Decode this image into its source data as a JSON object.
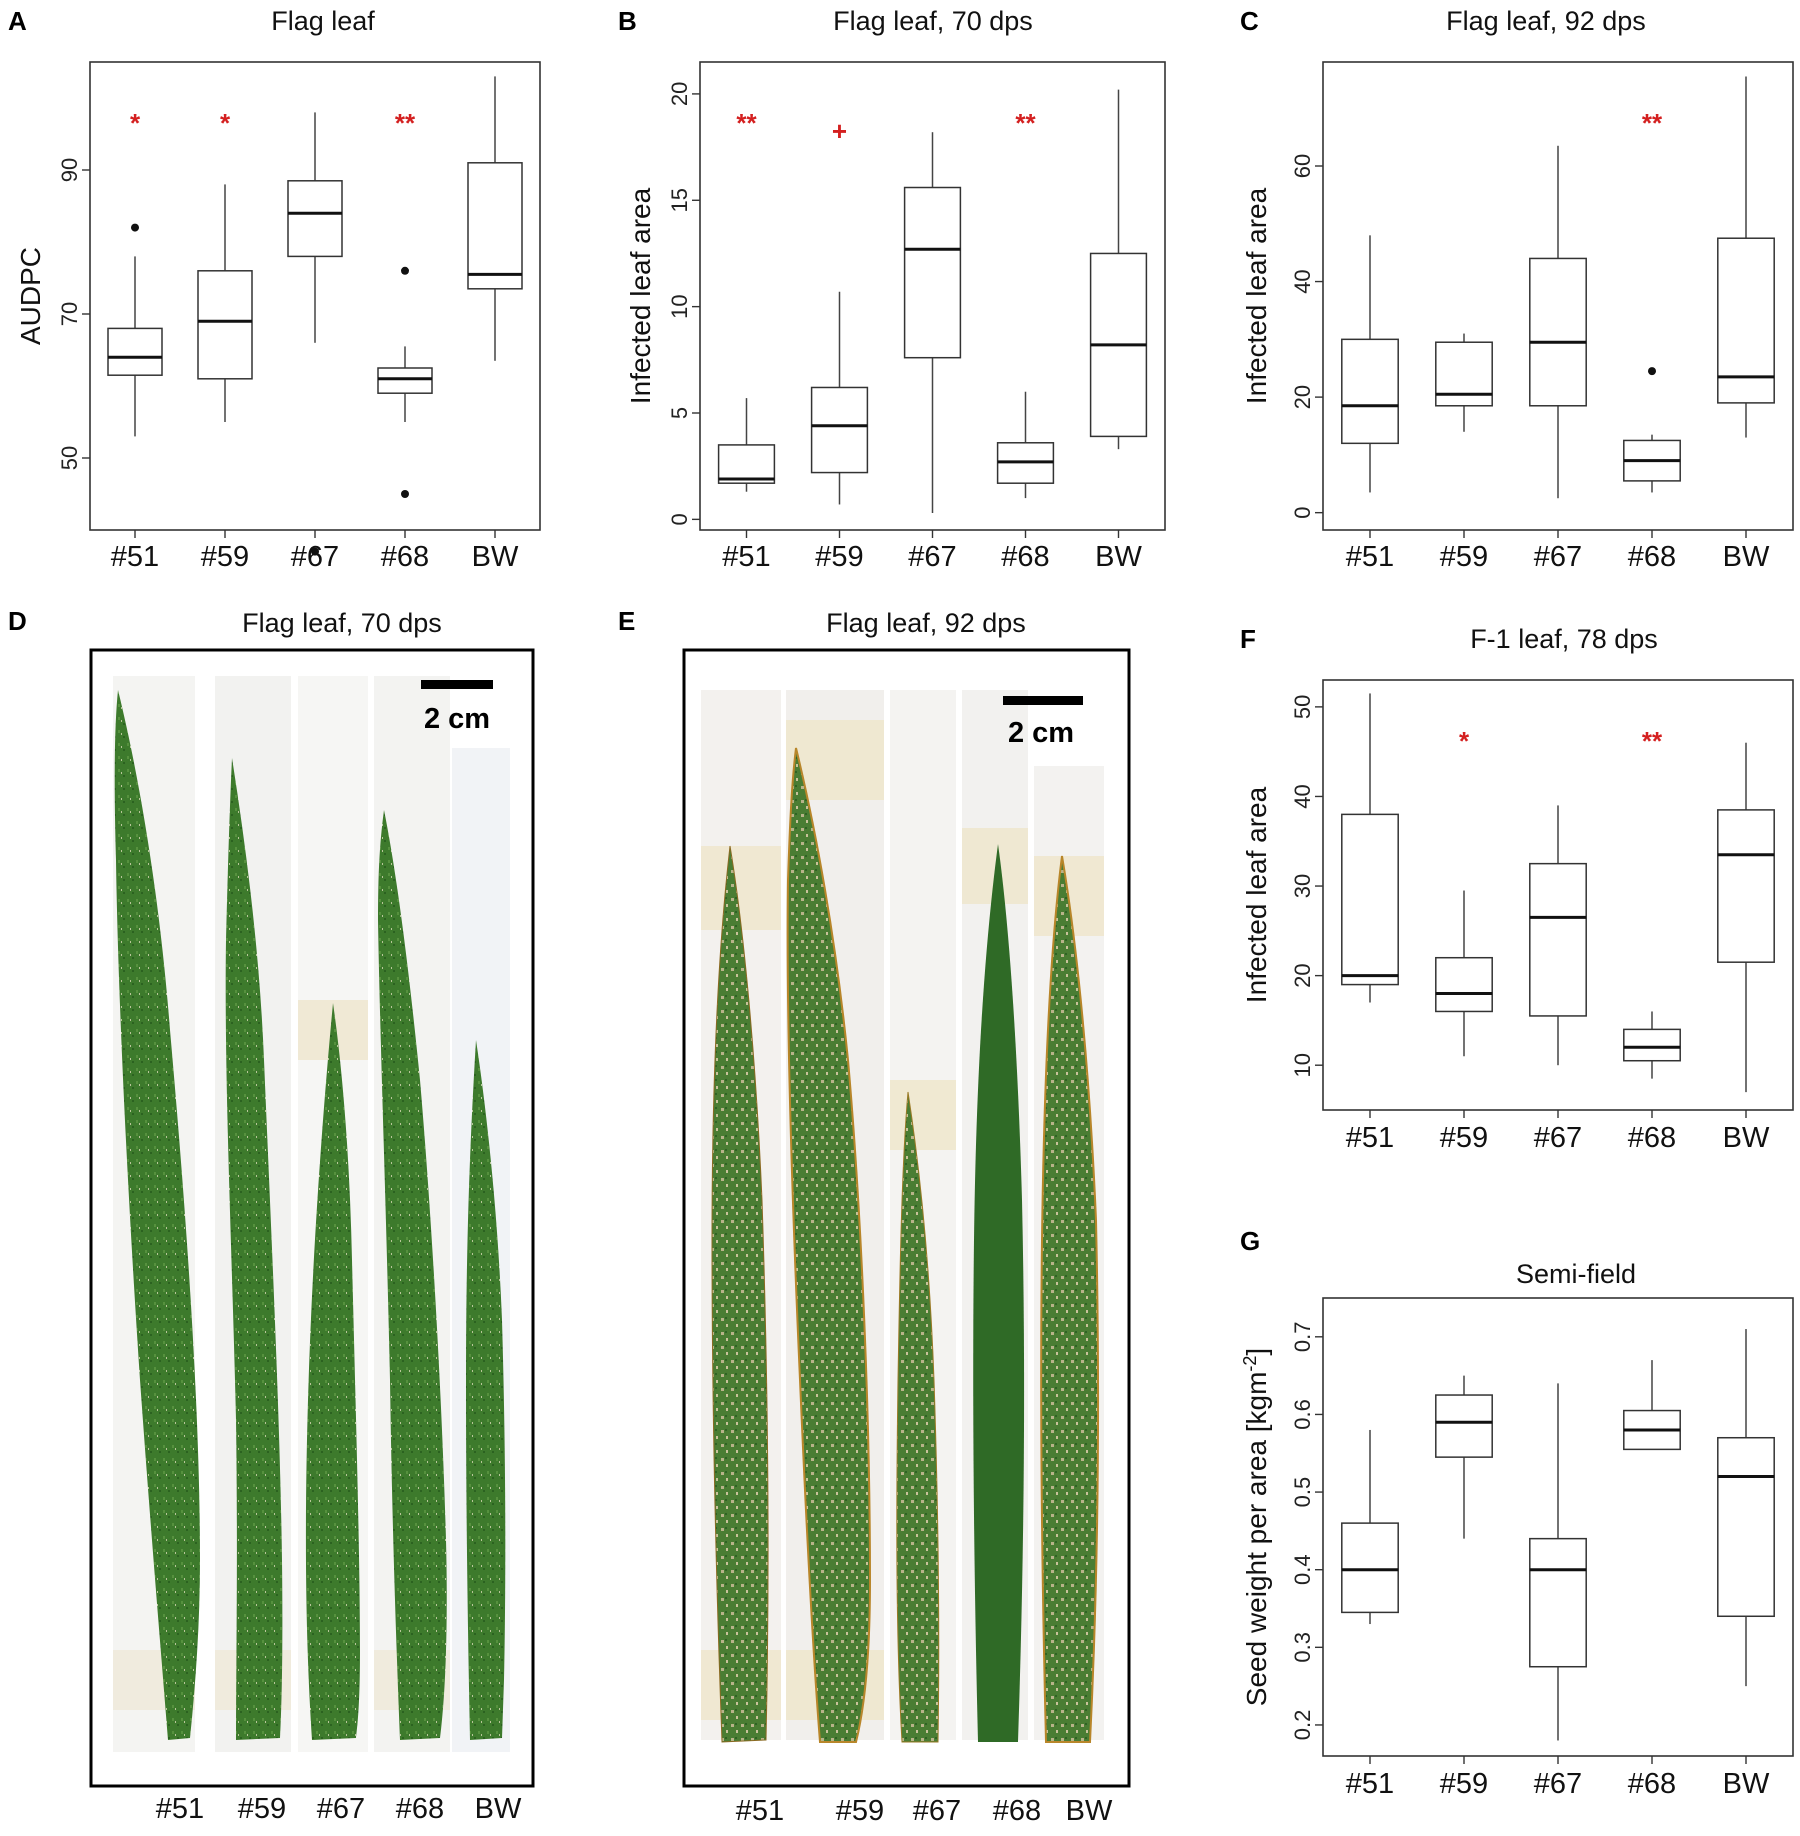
{
  "colors": {
    "sig": "#d42020",
    "leaf": "#3f7d2e",
    "leafDark": "#2d6522",
    "leafEdge": "#8a7a2a",
    "tape": "#efe6cd"
  },
  "chart_data": [
    {
      "id": "A",
      "letter": "A",
      "type": "box",
      "title": "Flag leaf",
      "ylabel": "AUDPC",
      "ylim": [
        40,
        105
      ],
      "ticks": [
        50,
        70,
        90
      ],
      "categories": [
        "#51",
        "#59",
        "#67",
        "#68",
        "BW"
      ],
      "boxes": [
        {
          "lw": 53,
          "q1": 61.5,
          "med": 64,
          "q3": 68,
          "uw": 78,
          "outliers": [
            82
          ]
        },
        {
          "lw": 55,
          "q1": 61,
          "med": 69,
          "q3": 76,
          "uw": 88,
          "outliers": []
        },
        {
          "lw": 66,
          "q1": 78,
          "med": 84,
          "q3": 88.5,
          "uw": 98,
          "outliers": [
            37
          ]
        },
        {
          "lw": 55,
          "q1": 59,
          "med": 61,
          "q3": 62.5,
          "uw": 65.5,
          "outliers": [
            76,
            45
          ]
        },
        {
          "lw": 63.5,
          "q1": 73.5,
          "med": 75.5,
          "q3": 91,
          "uw": 103,
          "outliers": []
        }
      ],
      "significance": [
        "*",
        "*",
        "",
        "**",
        ""
      ]
    },
    {
      "id": "B",
      "letter": "B",
      "type": "box",
      "title": "Flag leaf, 70 dps",
      "ylabel": "Infected leaf area",
      "ylim": [
        -0.5,
        21.5
      ],
      "ticks": [
        0,
        5,
        10,
        15,
        20
      ],
      "categories": [
        "#51",
        "#59",
        "#67",
        "#68",
        "BW"
      ],
      "boxes": [
        {
          "lw": 1.3,
          "q1": 1.7,
          "med": 1.9,
          "q3": 3.5,
          "uw": 5.7,
          "outliers": []
        },
        {
          "lw": 0.7,
          "q1": 2.2,
          "med": 4.4,
          "q3": 6.2,
          "uw": 10.7,
          "outliers": []
        },
        {
          "lw": 0.3,
          "q1": 7.6,
          "med": 12.7,
          "q3": 15.6,
          "uw": 18.2,
          "outliers": []
        },
        {
          "lw": 1.0,
          "q1": 1.7,
          "med": 2.7,
          "q3": 3.6,
          "uw": 6.0,
          "outliers": []
        },
        {
          "lw": 3.3,
          "q1": 3.9,
          "med": 8.2,
          "q3": 12.5,
          "uw": 20.2,
          "outliers": []
        }
      ],
      "significance": [
        "**",
        "+",
        "",
        "**",
        ""
      ]
    },
    {
      "id": "C",
      "letter": "C",
      "type": "box",
      "title": "Flag leaf, 92 dps",
      "ylabel": "Infected leaf area",
      "ylim": [
        -3,
        78
      ],
      "ticks": [
        0,
        20,
        40,
        60
      ],
      "categories": [
        "#51",
        "#59",
        "#67",
        "#68",
        "BW"
      ],
      "boxes": [
        {
          "lw": 3.5,
          "q1": 12,
          "med": 18.5,
          "q3": 30,
          "uw": 48,
          "outliers": []
        },
        {
          "lw": 14,
          "q1": 18.5,
          "med": 20.5,
          "q3": 29.5,
          "uw": 31,
          "outliers": []
        },
        {
          "lw": 2.5,
          "q1": 18.5,
          "med": 29.5,
          "q3": 44,
          "uw": 63.5,
          "outliers": []
        },
        {
          "lw": 3.5,
          "q1": 5.5,
          "med": 9,
          "q3": 12.5,
          "uw": 13.5,
          "outliers": [
            24.5
          ]
        },
        {
          "lw": 13,
          "q1": 19,
          "med": 23.5,
          "q3": 47.5,
          "uw": 75.5,
          "outliers": []
        }
      ],
      "significance": [
        "",
        "",
        "",
        "**",
        ""
      ]
    },
    {
      "id": "F",
      "letter": "F",
      "type": "box",
      "title": "F-1 leaf, 78 dps",
      "ylabel": "Infected leaf area",
      "ylim": [
        5,
        53
      ],
      "ticks": [
        10,
        20,
        30,
        40,
        50
      ],
      "categories": [
        "#51",
        "#59",
        "#67",
        "#68",
        "BW"
      ],
      "boxes": [
        {
          "lw": 17,
          "q1": 19,
          "med": 20,
          "q3": 38,
          "uw": 51.5,
          "outliers": []
        },
        {
          "lw": 11,
          "q1": 16,
          "med": 18,
          "q3": 22,
          "uw": 29.5,
          "outliers": []
        },
        {
          "lw": 10,
          "q1": 15.5,
          "med": 26.5,
          "q3": 32.5,
          "uw": 39,
          "outliers": []
        },
        {
          "lw": 8.5,
          "q1": 10.5,
          "med": 12,
          "q3": 14,
          "uw": 16,
          "outliers": []
        },
        {
          "lw": 7,
          "q1": 21.5,
          "med": 33.5,
          "q3": 38.5,
          "uw": 46,
          "outliers": []
        }
      ],
      "significance": [
        "",
        "*",
        "",
        "**",
        ""
      ]
    },
    {
      "id": "G",
      "letter": "G",
      "type": "box",
      "title": "Semi-field",
      "ylabel": "Seed weight per area [kgm",
      "ylabel_sup": "-2",
      "ylabel_end": "]",
      "ylim": [
        0.16,
        0.75
      ],
      "ticks": [
        0.2,
        0.3,
        0.4,
        0.5,
        0.6,
        0.7
      ],
      "categories": [
        "#51",
        "#59",
        "#67",
        "#68",
        "BW"
      ],
      "boxes": [
        {
          "lw": 0.33,
          "q1": 0.345,
          "med": 0.4,
          "q3": 0.46,
          "uw": 0.58,
          "outliers": []
        },
        {
          "lw": 0.44,
          "q1": 0.545,
          "med": 0.59,
          "q3": 0.625,
          "uw": 0.65,
          "outliers": []
        },
        {
          "lw": 0.18,
          "q1": 0.275,
          "med": 0.4,
          "q3": 0.44,
          "uw": 0.64,
          "outliers": []
        },
        {
          "lw": 0.555,
          "q1": 0.555,
          "med": 0.58,
          "q3": 0.605,
          "uw": 0.67,
          "outliers": []
        },
        {
          "lw": 0.25,
          "q1": 0.34,
          "med": 0.52,
          "q3": 0.57,
          "uw": 0.71,
          "outliers": []
        }
      ],
      "significance": [
        "",
        "",
        "",
        "",
        ""
      ]
    }
  ],
  "photos": [
    {
      "id": "D",
      "letter": "D",
      "title": "Flag leaf, 70 dps",
      "scale_label": "2 cm",
      "categories": [
        "#51",
        "#59",
        "#67",
        "#68",
        "BW"
      ],
      "leaves": 5
    },
    {
      "id": "E",
      "letter": "E",
      "title": "Flag leaf, 92 dps",
      "scale_label": "2 cm",
      "categories": [
        "#51",
        "#59",
        "#67",
        "#68",
        "BW"
      ],
      "leaves": 5
    }
  ]
}
